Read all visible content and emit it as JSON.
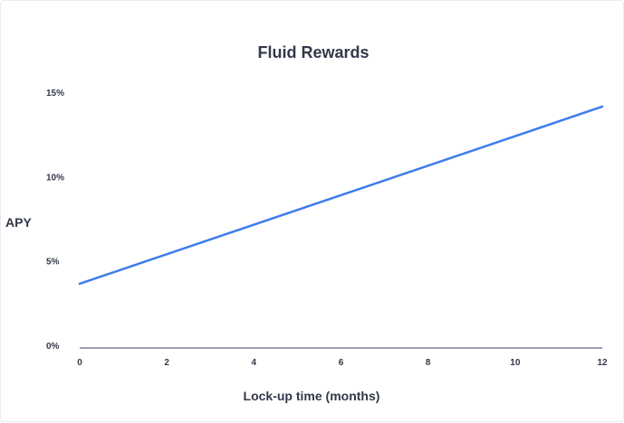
{
  "chart_data": {
    "type": "line",
    "title": "Fluid Rewards",
    "xlabel": "Lock-up time (months)",
    "ylabel": "APY",
    "x_ticks": [
      0,
      2,
      4,
      6,
      8,
      10,
      12
    ],
    "x_tick_labels": [
      "0",
      "2",
      "4",
      "6",
      "8",
      "10",
      "12"
    ],
    "y_ticks": [
      0,
      5,
      10,
      15
    ],
    "y_tick_labels": [
      "0%",
      "5%",
      "10%",
      "15%"
    ],
    "xlim": [
      0,
      12
    ],
    "ylim": [
      0,
      15
    ],
    "grid": false,
    "legend": "none",
    "series": [
      {
        "x": [
          0,
          12
        ],
        "y": [
          3.7,
          14.2
        ],
        "color": "#3d7cec"
      }
    ],
    "colors": {
      "line": "#3d7cec",
      "axis": "#9aa1b1",
      "text": "#33384a"
    }
  }
}
